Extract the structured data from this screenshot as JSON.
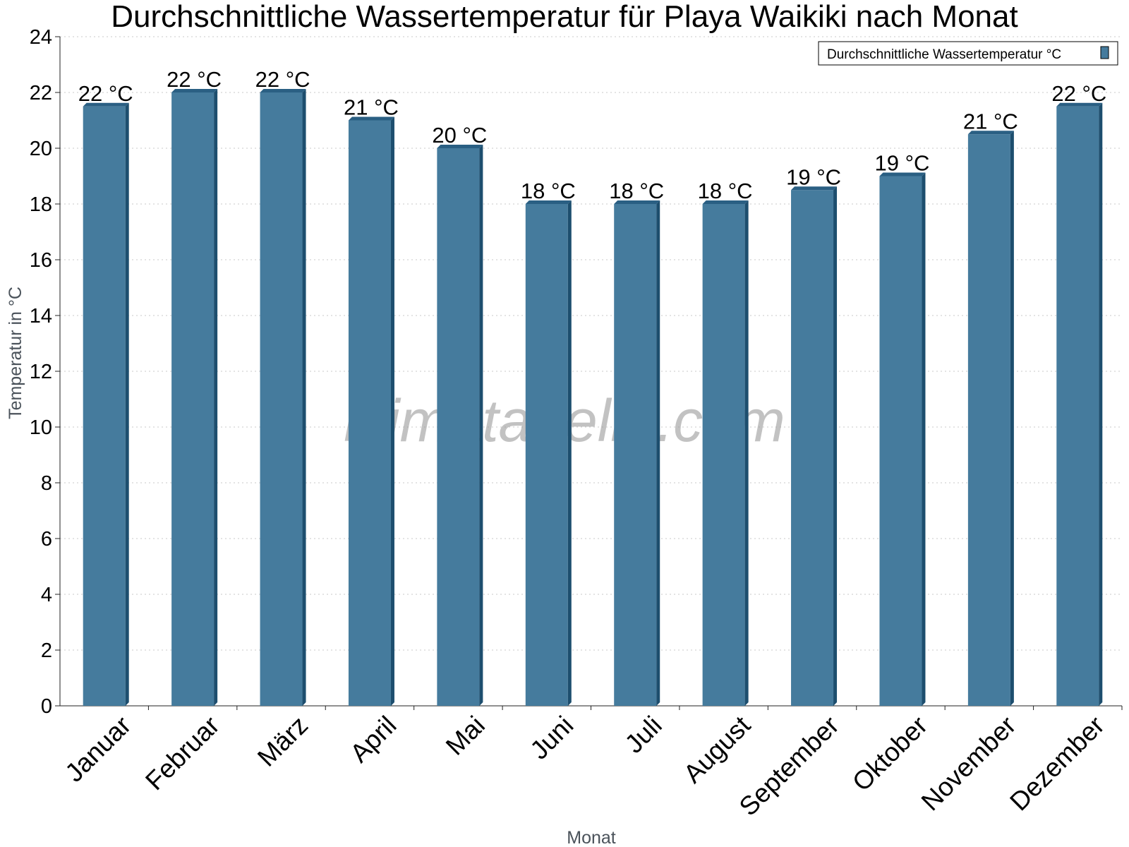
{
  "chart_data": {
    "type": "bar",
    "title": "Durchschnittliche Wassertemperatur für Playa Waikiki nach Monat",
    "xlabel": "Monat",
    "ylabel": "Temperatur in °C",
    "ylim": [
      0,
      24
    ],
    "yticks": [
      0,
      2,
      4,
      6,
      8,
      10,
      12,
      14,
      16,
      18,
      20,
      22,
      24
    ],
    "grid": true,
    "legend_position": "top-right",
    "categories": [
      "Januar",
      "Februar",
      "März",
      "April",
      "Mai",
      "Juni",
      "Juli",
      "August",
      "September",
      "Oktober",
      "November",
      "Dezember"
    ],
    "series": [
      {
        "name": "Durchschnittliche Wassertemperatur °C",
        "values": [
          21.5,
          22,
          22,
          21,
          20,
          18,
          18,
          18,
          18.5,
          19,
          20.5,
          21.5
        ],
        "labels": [
          "22 °C",
          "22 °C",
          "22 °C",
          "21 °C",
          "20 °C",
          "18 °C",
          "18 °C",
          "18 °C",
          "19 °C",
          "19 °C",
          "21 °C",
          "22 °C"
        ],
        "color": "#457b9d",
        "side_color": "#1d4e6e",
        "top_color": "#2a5f83"
      }
    ],
    "watermark": "klimatabelle.com"
  }
}
